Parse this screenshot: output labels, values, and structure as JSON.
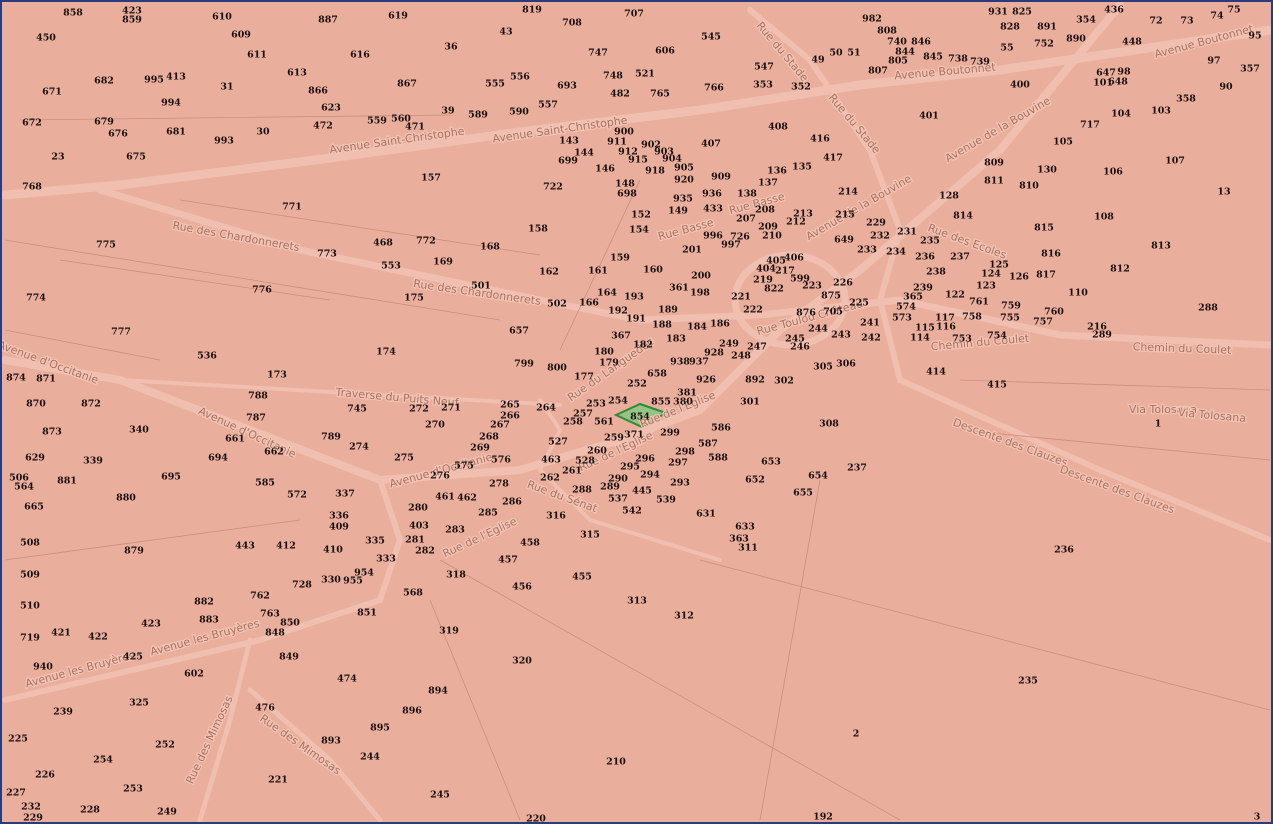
{
  "map": {
    "selected_parcel": "854",
    "parcels": [
      "858",
      "423",
      "859",
      "610",
      "887",
      "619",
      "819",
      "707",
      "708",
      "43",
      "450",
      "609",
      "611",
      "616",
      "36",
      "747",
      "606",
      "545",
      "982",
      "808",
      "931",
      "825",
      "828",
      "891",
      "354",
      "436",
      "72",
      "73",
      "74",
      "75",
      "95",
      "448",
      "97",
      "357",
      "90",
      "740",
      "846",
      "844",
      "50",
      "51",
      "49",
      "805",
      "845",
      "738",
      "739",
      "55",
      "752",
      "890",
      "807",
      "547",
      "400",
      "647",
      "98",
      "648",
      "101",
      "358",
      "671",
      "682",
      "995",
      "413",
      "31",
      "613",
      "866",
      "867",
      "555",
      "556",
      "693",
      "748",
      "521",
      "482",
      "765",
      "766",
      "353",
      "352",
      "994",
      "623",
      "39",
      "589",
      "590",
      "557",
      "401",
      "104",
      "103",
      "717",
      "672",
      "679",
      "676",
      "681",
      "993",
      "30",
      "472",
      "559",
      "560",
      "471",
      "408",
      "416",
      "105",
      "23",
      "675",
      "143",
      "900",
      "911",
      "902",
      "903",
      "912",
      "915",
      "904",
      "144",
      "699",
      "146",
      "918",
      "905",
      "407",
      "417",
      "809",
      "130",
      "106",
      "107",
      "157",
      "722",
      "909",
      "136",
      "135",
      "920",
      "148",
      "698",
      "137",
      "811",
      "810",
      "13",
      "768",
      "935",
      "936",
      "138",
      "214",
      "128",
      "771",
      "149",
      "433",
      "152",
      "208",
      "213",
      "215",
      "207",
      "212",
      "209",
      "229",
      "814",
      "815",
      "108",
      "154",
      "158",
      "210",
      "996",
      "726",
      "649",
      "232",
      "231",
      "235",
      "997",
      "201",
      "233",
      "234",
      "236",
      "237",
      "813",
      "775",
      "468",
      "772",
      "168",
      "773",
      "159",
      "405",
      "406",
      "404",
      "217",
      "816",
      "125",
      "124",
      "126",
      "238",
      "553",
      "169",
      "161",
      "160",
      "162",
      "200",
      "219",
      "599",
      "226",
      "822",
      "223",
      "817",
      "812",
      "123",
      "239",
      "501",
      "776",
      "361",
      "198",
      "221",
      "875",
      "365",
      "122",
      "761",
      "759",
      "110",
      "774",
      "175",
      "164",
      "193",
      "502",
      "166",
      "225",
      "574",
      "758",
      "755",
      "760",
      "757",
      "288",
      "192",
      "189",
      "222",
      "876",
      "705",
      "573",
      "117",
      "116",
      "115",
      "114",
      "191",
      "188",
      "184",
      "186",
      "244",
      "241",
      "243",
      "242",
      "753",
      "754",
      "216",
      "289",
      "777",
      "657",
      "367",
      "183",
      "182",
      "245",
      "249",
      "246",
      "247",
      "928",
      "248",
      "174",
      "536",
      "180",
      "179",
      "938",
      "937",
      "799",
      "800",
      "305",
      "306",
      "414",
      "173",
      "658",
      "177",
      "252",
      "926",
      "892",
      "302",
      "415",
      "874",
      "871",
      "788",
      "381",
      "855",
      "380",
      "254",
      "253",
      "301",
      "870",
      "872",
      "745",
      "272",
      "271",
      "265",
      "264",
      "266",
      "257",
      "787",
      "267",
      "270",
      "258",
      "561",
      "308",
      "586",
      "340",
      "873",
      "268",
      "299",
      "371",
      "259",
      "661",
      "789",
      "274",
      "662",
      "269",
      "527",
      "587",
      "260",
      "1",
      "629",
      "339",
      "694",
      "275",
      "576",
      "463",
      "528",
      "296",
      "298",
      "297",
      "588",
      "653",
      "575",
      "261",
      "295",
      "294",
      "237",
      "695",
      "506",
      "564",
      "881",
      "276",
      "262",
      "290",
      "652",
      "654",
      "585",
      "278",
      "288",
      "289",
      "445",
      "293",
      "880",
      "572",
      "337",
      "461",
      "462",
      "286",
      "537",
      "539",
      "655",
      "665",
      "280",
      "542",
      "285",
      "316",
      "631",
      "336",
      "409",
      "403",
      "283",
      "315",
      "633",
      "335",
      "281",
      "458",
      "363",
      "311",
      "508",
      "879",
      "443",
      "412",
      "410",
      "282",
      "236",
      "333",
      "457",
      "318",
      "954",
      "330",
      "955",
      "728",
      "455",
      "509",
      "456",
      "568",
      "313",
      "882",
      "762",
      "763",
      "851",
      "850",
      "312",
      "510",
      "423",
      "883",
      "848",
      "319",
      "719",
      "421",
      "422",
      "425",
      "849",
      "320",
      "940",
      "602",
      "474",
      "235",
      "894",
      "325",
      "239",
      "476",
      "896",
      "893",
      "895",
      "2",
      "225",
      "252",
      "244",
      "254",
      "210",
      "226",
      "221",
      "253",
      "245",
      "227",
      "232",
      "228",
      "249",
      "229",
      "220",
      "192",
      "3"
    ],
    "streets": [
      "Avenue Saint-Christophe",
      "Avenue Saint-Christophe",
      "Rue des Chardonnerets",
      "Rue des Chardonnerets",
      "Avenue Boutonnet",
      "Avenue Boutonnet",
      "Rue du Stade",
      "Rue du Stade",
      "Avenue de la Bouvine",
      "Avenue de la Bouvine",
      "Rue Basse",
      "Rue Basse",
      "Rue des Ecoles",
      "Rue Toulou Château",
      "Chemin du Coulet",
      "Chemin du Coulet",
      "Avenue d'Occitanie",
      "Avenue d'Occitanie",
      "Avenue d'Occitanie",
      "Traverse du Puits Neuf",
      "Rue du Languedoc",
      "Rue de l'Eglise",
      "Rue de l'Eglise",
      "Rue de l'Eglise",
      "Rue du Sénat",
      "Descente des Clauzes",
      "Descente des Clauzes",
      "Via Tolosana",
      "Via Tolosana",
      "Avenue les Bruyères",
      "Avenue les Bruyères",
      "Rue des Mimosas",
      "Rue des Mimosas"
    ]
  }
}
